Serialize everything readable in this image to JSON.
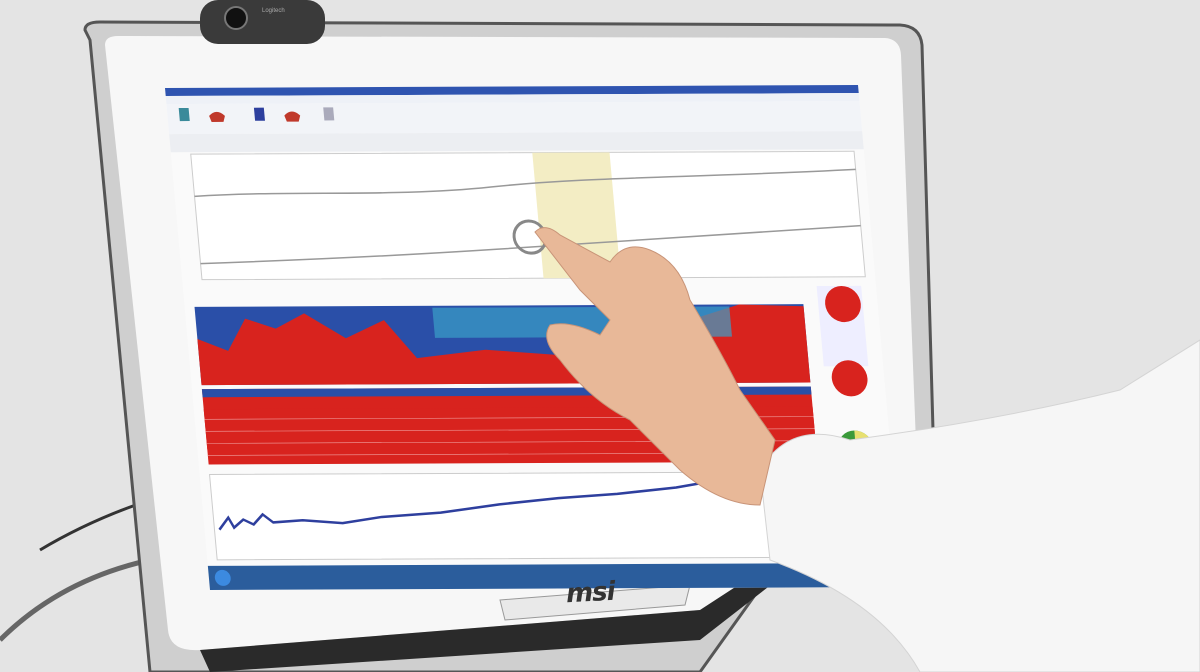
{
  "monitor": {
    "brand": "msi",
    "bezel_color": "#f7f7f7"
  },
  "webcam": {
    "brand": "Logitech"
  },
  "screen": {
    "app_type": "sleep/EEG monitoring software",
    "highlight_color": "#f3edc4",
    "spectrum_colors": [
      "#d8231e",
      "#2a4fa8",
      "#3aa0c8",
      "#e8c830"
    ],
    "trace_color": "#2e3f9e"
  }
}
